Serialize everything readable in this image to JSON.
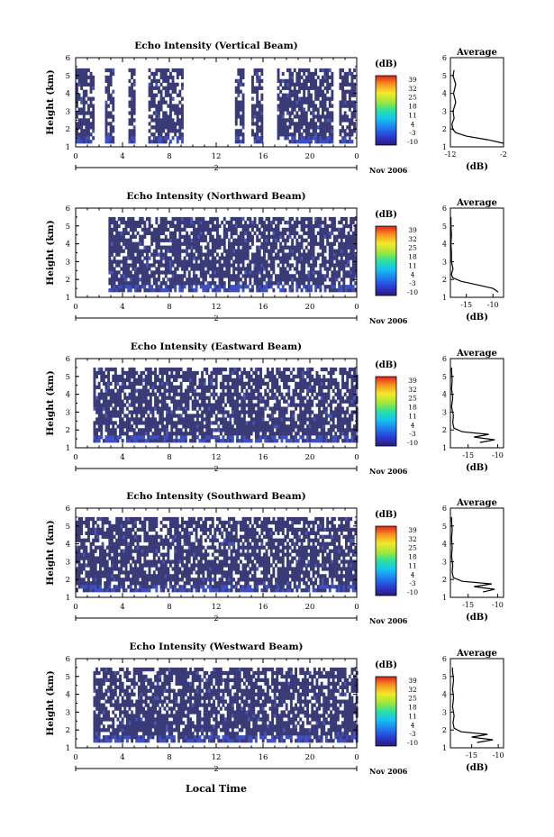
{
  "figure": {
    "xlabel_bottom": "Local Time",
    "date_label": "2",
    "month_label": "Nov 2006",
    "colorbar_unit": "(dB)",
    "colorbar_ticks": [
      "39",
      "32",
      "25",
      "18",
      "11",
      "4",
      "-3",
      "-10"
    ],
    "avg_title": "Average",
    "avg_xlabel": "(dB)"
  },
  "chart_data": [
    {
      "type": "heatmap",
      "title": "Echo Intensity (Vertical Beam)",
      "ylabel": "Height (km)",
      "xlim": [
        0,
        24
      ],
      "ylim": [
        1,
        6
      ],
      "x_ticks": [
        "0",
        "4",
        "8",
        "12",
        "16",
        "20",
        "0"
      ],
      "y_ticks": [
        "1",
        "2",
        "3",
        "4",
        "5",
        "6"
      ],
      "color_range": [
        -10,
        39
      ],
      "data_window_hours": [
        [
          0,
          1.5
        ],
        [
          2.5,
          3.3
        ],
        [
          4.5,
          5.0
        ],
        [
          6.2,
          9.2
        ],
        [
          13.6,
          14.4
        ],
        [
          15.0,
          16.0
        ],
        [
          17.2,
          22.0
        ],
        [
          22.5,
          23.8
        ]
      ],
      "height_range_km": [
        1.2,
        5.4
      ],
      "background_db": -10,
      "average_profile": {
        "title": "Average",
        "xlabel": "(dB)",
        "xlim": [
          -12,
          -2
        ],
        "x_ticks": [
          "-12",
          "-2"
        ],
        "ylim": [
          1,
          6
        ],
        "heights": [
          1.2,
          1.4,
          1.6,
          1.8,
          2.0,
          2.3,
          2.6,
          3.0,
          3.5,
          4.0,
          4.5,
          5.0,
          5.3
        ],
        "values": [
          -2,
          -5,
          -9,
          -11,
          -11.6,
          -11.7,
          -11.3,
          -11.5,
          -11.0,
          -11.4,
          -11.0,
          -11.5,
          -11.3
        ]
      }
    },
    {
      "type": "heatmap",
      "title": "Echo Intensity (Northward Beam)",
      "ylabel": "Height (km)",
      "xlim": [
        0,
        24
      ],
      "ylim": [
        1,
        6
      ],
      "x_ticks": [
        "0",
        "4",
        "8",
        "12",
        "16",
        "20",
        "0"
      ],
      "y_ticks": [
        "1",
        "2",
        "3",
        "4",
        "5",
        "6"
      ],
      "color_range": [
        -10,
        39
      ],
      "data_window_hours": [
        [
          2.8,
          24
        ]
      ],
      "height_range_km": [
        1.3,
        5.5
      ],
      "background_db": -10,
      "average_profile": {
        "title": "Average",
        "xlabel": "(dB)",
        "xlim": [
          -18,
          -8
        ],
        "x_ticks": [
          "-15",
          "-10"
        ],
        "ylim": [
          1,
          6
        ],
        "heights": [
          1.3,
          1.5,
          1.7,
          1.9,
          2.1,
          2.3,
          2.6,
          3.0,
          3.5,
          4.0,
          4.5,
          5.0,
          5.5
        ],
        "values": [
          -9,
          -10,
          -13,
          -16,
          -17.6,
          -17.8,
          -17.5,
          -17.8,
          -17.8,
          -17.9,
          -17.8,
          -17.9,
          -17.9
        ]
      }
    },
    {
      "type": "heatmap",
      "title": "Echo Intensity (Eastward Beam)",
      "ylabel": "Height (km)",
      "xlim": [
        0,
        24
      ],
      "ylim": [
        1,
        6
      ],
      "x_ticks": [
        "0",
        "4",
        "8",
        "12",
        "16",
        "20",
        "0"
      ],
      "y_ticks": [
        "1",
        "2",
        "3",
        "4",
        "5",
        "6"
      ],
      "color_range": [
        -10,
        39
      ],
      "data_window_hours": [
        [
          1.5,
          24
        ]
      ],
      "height_range_km": [
        1.3,
        5.5
      ],
      "background_db": -10,
      "average_profile": {
        "title": "Average",
        "xlabel": "(dB)",
        "xlim": [
          -18,
          -9
        ],
        "x_ticks": [
          "-15",
          "-10"
        ],
        "ylim": [
          1,
          6
        ],
        "heights": [
          1.3,
          1.45,
          1.6,
          1.75,
          1.9,
          2.1,
          2.4,
          2.8,
          3.3,
          3.8,
          4.3,
          4.8,
          5.3,
          5.5
        ],
        "values": [
          -13,
          -10.5,
          -14,
          -11.5,
          -16,
          -17.4,
          -17.6,
          -17.5,
          -17.8,
          -17.6,
          -17.8,
          -17.7,
          -17.8,
          -17.8
        ]
      }
    },
    {
      "type": "heatmap",
      "title": "Echo Intensity (Southward Beam)",
      "ylabel": "Height (km)",
      "xlim": [
        0,
        24
      ],
      "ylim": [
        1,
        6
      ],
      "x_ticks": [
        "0",
        "4",
        "8",
        "12",
        "16",
        "20",
        "0"
      ],
      "y_ticks": [
        "1",
        "2",
        "3",
        "4",
        "5",
        "6"
      ],
      "color_range": [
        -10,
        39
      ],
      "data_window_hours": [
        [
          0,
          24
        ]
      ],
      "height_range_km": [
        1.3,
        5.5
      ],
      "background_db": -10,
      "average_profile": {
        "title": "Average",
        "xlabel": "(dB)",
        "xlim": [
          -18,
          -9
        ],
        "x_ticks": [
          "-15",
          "-10"
        ],
        "ylim": [
          1,
          6
        ],
        "heights": [
          1.3,
          1.45,
          1.6,
          1.75,
          1.9,
          2.1,
          2.4,
          2.8,
          3.3,
          3.8,
          4.3,
          4.8,
          5.3,
          5.5
        ],
        "values": [
          -12.5,
          -10.5,
          -14,
          -11,
          -16,
          -17.5,
          -17.7,
          -17.6,
          -17.8,
          -17.7,
          -17.8,
          -17.7,
          -17.8,
          -17.8
        ]
      }
    },
    {
      "type": "heatmap",
      "title": "Echo Intensity (Westward Beam)",
      "ylabel": "Height (km)",
      "xlim": [
        0,
        24
      ],
      "ylim": [
        1,
        6
      ],
      "x_ticks": [
        "0",
        "4",
        "8",
        "12",
        "16",
        "20",
        "0"
      ],
      "y_ticks": [
        "1",
        "2",
        "3",
        "4",
        "5",
        "6"
      ],
      "color_range": [
        -10,
        39
      ],
      "data_window_hours": [
        [
          1.5,
          24
        ]
      ],
      "height_range_km": [
        1.3,
        5.5
      ],
      "background_db": -10,
      "average_profile": {
        "title": "Average",
        "xlabel": "(dB)",
        "xlim": [
          -19,
          -9
        ],
        "x_ticks": [
          "-15",
          "-10"
        ],
        "ylim": [
          1,
          6
        ],
        "heights": [
          1.3,
          1.45,
          1.6,
          1.75,
          1.9,
          2.1,
          2.4,
          2.8,
          3.3,
          3.8,
          4.3,
          4.8,
          5.3,
          5.5
        ],
        "values": [
          -14,
          -11,
          -15,
          -12,
          -17,
          -18.3,
          -18.5,
          -18.3,
          -18.6,
          -18.4,
          -18.6,
          -18.4,
          -18.6,
          -18.6
        ]
      }
    }
  ]
}
